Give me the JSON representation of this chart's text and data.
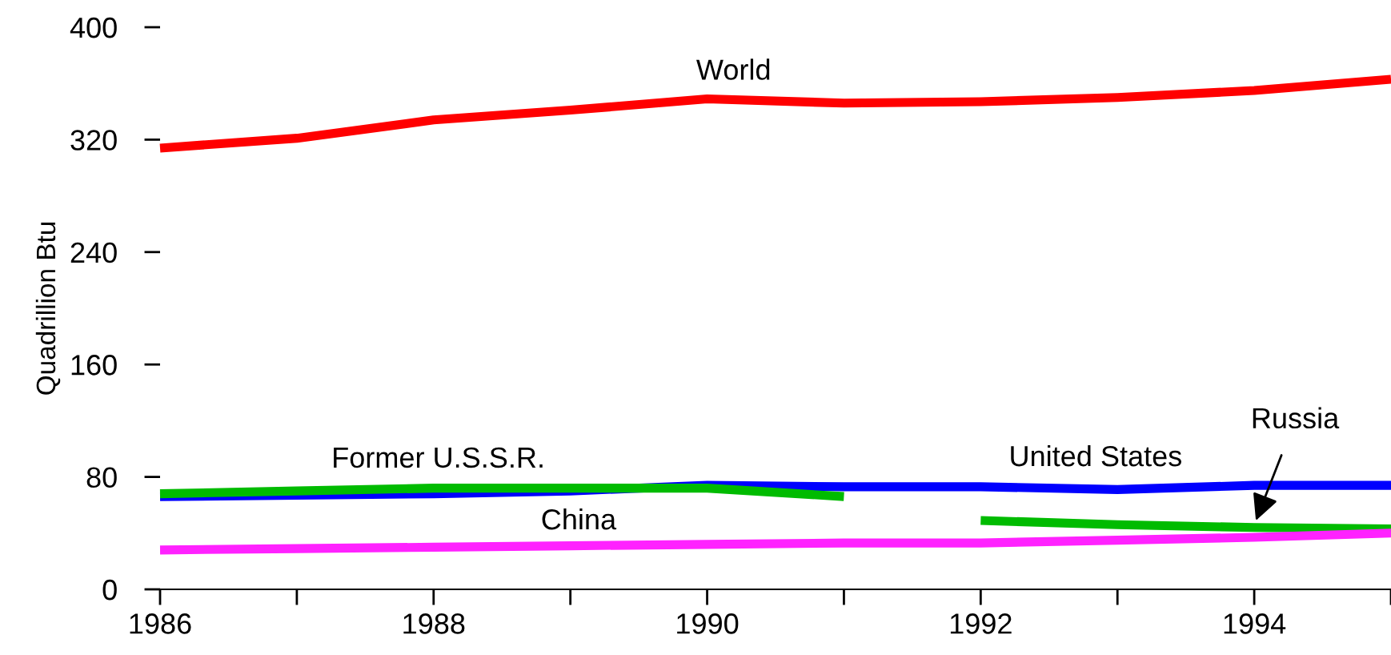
{
  "chart_data": {
    "type": "line",
    "ylabel": "Quadrillion Btu",
    "x": [
      1986,
      1987,
      1988,
      1989,
      1990,
      1991,
      1992,
      1993,
      1994,
      1995
    ],
    "series": [
      {
        "name": "World",
        "color": "#ff0000",
        "values": [
          314,
          321,
          334,
          341,
          349,
          346,
          347,
          350,
          355,
          363
        ]
      },
      {
        "name": "United States",
        "color": "#0000ff",
        "values": [
          66,
          67,
          68,
          70,
          74,
          73,
          73,
          71,
          74,
          74
        ]
      },
      {
        "name": "Former U.S.S.R.",
        "color": "#00bb00",
        "values": [
          68,
          70,
          72,
          72,
          72,
          66,
          null,
          null,
          null,
          null
        ]
      },
      {
        "name": "Russia",
        "color": "#00bb00",
        "values": [
          null,
          null,
          null,
          null,
          null,
          null,
          49,
          46,
          44,
          43
        ]
      },
      {
        "name": "China",
        "color": "#ff22ff",
        "values": [
          28,
          29,
          30,
          31,
          32,
          33,
          33,
          35,
          37,
          40
        ]
      }
    ],
    "xlim": [
      1986,
      1995
    ],
    "ylim": [
      0,
      400
    ],
    "xticks": [
      1986,
      {
        "value": 1987,
        "label": null
      },
      1988,
      {
        "value": 1989,
        "label": null
      },
      1990,
      {
        "value": 1991,
        "label": null
      },
      1992,
      {
        "value": 1993,
        "label": null
      },
      1994,
      {
        "value": 1995,
        "label": null
      }
    ],
    "yticks": [
      0,
      80,
      160,
      240,
      320,
      400
    ],
    "grid": false,
    "legend": false,
    "marker": "none",
    "line_style": "solid"
  }
}
